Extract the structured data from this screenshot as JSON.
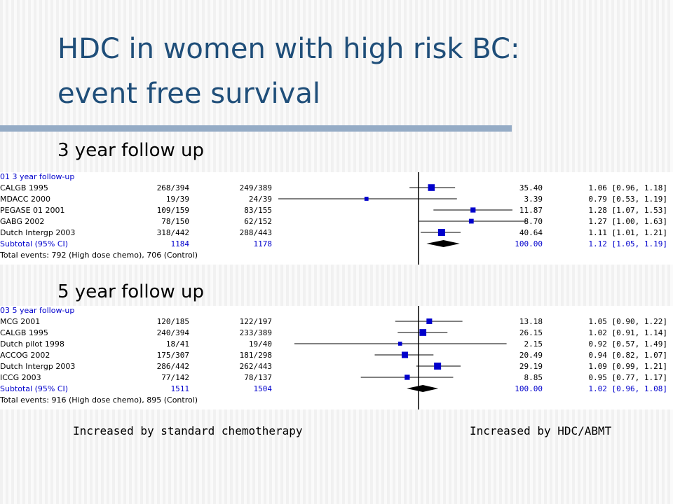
{
  "slide": {
    "title_line1": "HDC in women with high risk BC:",
    "title_line2": "event free survival",
    "label_left": "Increased by standard chemotherapy",
    "label_right": "Increased by HDC/ABMT"
  },
  "colors": {
    "title": "#1f4e79",
    "rule": "#95acc6",
    "marker": "#0000cc",
    "subtotal_text": "#0000cc"
  },
  "chart_data": [
    {
      "type": "forest",
      "subheading": "3 year follow up",
      "group_label": "01 3 year follow-up",
      "x_scale": "log",
      "reference_line": 1,
      "studies": [
        {
          "name": "CALGB 1995",
          "treatment": "268/394",
          "control": "249/389",
          "weight": "35.40",
          "ci_text": "1.06 [0.96, 1.18]",
          "est": 1.06,
          "lo": 0.96,
          "hi": 1.18
        },
        {
          "name": "MDACC 2000",
          "treatment": "19/39",
          "control": "24/39",
          "weight": "3.39",
          "ci_text": "0.79 [0.53, 1.19]",
          "est": 0.79,
          "lo": 0.53,
          "hi": 1.19
        },
        {
          "name": "PEGASE 01 2001",
          "treatment": "109/159",
          "control": "83/155",
          "weight": "11.87",
          "ci_text": "1.28 [1.07, 1.53]",
          "est": 1.28,
          "lo": 1.07,
          "hi": 1.53
        },
        {
          "name": "GABG 2002",
          "treatment": "78/150",
          "control": "62/152",
          "weight": "8.70",
          "ci_text": "1.27 [1.00, 1.63]",
          "est": 1.27,
          "lo": 1.0,
          "hi": 1.63
        },
        {
          "name": "Dutch Intergp 2003",
          "treatment": "318/442",
          "control": "288/443",
          "weight": "40.64",
          "ci_text": "1.11 [1.01, 1.21]",
          "est": 1.11,
          "lo": 1.01,
          "hi": 1.21
        }
      ],
      "subtotal": {
        "name": "Subtotal (95% CI)",
        "treatment": "1184",
        "control": "1178",
        "weight": "100.00",
        "ci_text": "1.12 [1.05, 1.19]",
        "est": 1.12,
        "lo": 1.05,
        "hi": 1.19
      },
      "total_events": "Total events: 792 (High dose chemo), 706 (Control)"
    },
    {
      "type": "forest",
      "subheading": "5 year follow up",
      "group_label": "03 5 year follow-up",
      "x_scale": "log",
      "reference_line": 1,
      "studies": [
        {
          "name": "MCG 2001",
          "treatment": "120/185",
          "control": "122/197",
          "weight": "13.18",
          "ci_text": "1.05 [0.90, 1.22]",
          "est": 1.05,
          "lo": 0.9,
          "hi": 1.22
        },
        {
          "name": "CALGB 1995",
          "treatment": "240/394",
          "control": "233/389",
          "weight": "26.15",
          "ci_text": "1.02 [0.91, 1.14]",
          "est": 1.02,
          "lo": 0.91,
          "hi": 1.14
        },
        {
          "name": "Dutch pilot 1998",
          "treatment": "18/41",
          "control": "19/40",
          "weight": "2.15",
          "ci_text": "0.92 [0.57, 1.49]",
          "est": 0.92,
          "lo": 0.57,
          "hi": 1.49
        },
        {
          "name": "ACCOG 2002",
          "treatment": "175/307",
          "control": "181/298",
          "weight": "20.49",
          "ci_text": "0.94 [0.82, 1.07]",
          "est": 0.94,
          "lo": 0.82,
          "hi": 1.07
        },
        {
          "name": "Dutch Intergp 2003",
          "treatment": "286/442",
          "control": "262/443",
          "weight": "29.19",
          "ci_text": "1.09 [0.99, 1.21]",
          "est": 1.09,
          "lo": 0.99,
          "hi": 1.21
        },
        {
          "name": "ICCG 2003",
          "treatment": "77/142",
          "control": "78/137",
          "weight": "8.85",
          "ci_text": "0.95 [0.77, 1.17]",
          "est": 0.95,
          "lo": 0.77,
          "hi": 1.17
        }
      ],
      "subtotal": {
        "name": "Subtotal (95% CI)",
        "treatment": "1511",
        "control": "1504",
        "weight": "100.00",
        "ci_text": "1.02 [0.96, 1.08]",
        "est": 1.02,
        "lo": 0.96,
        "hi": 1.08
      },
      "total_events": "Total events: 916 (High dose chemo), 895 (Control)"
    }
  ]
}
